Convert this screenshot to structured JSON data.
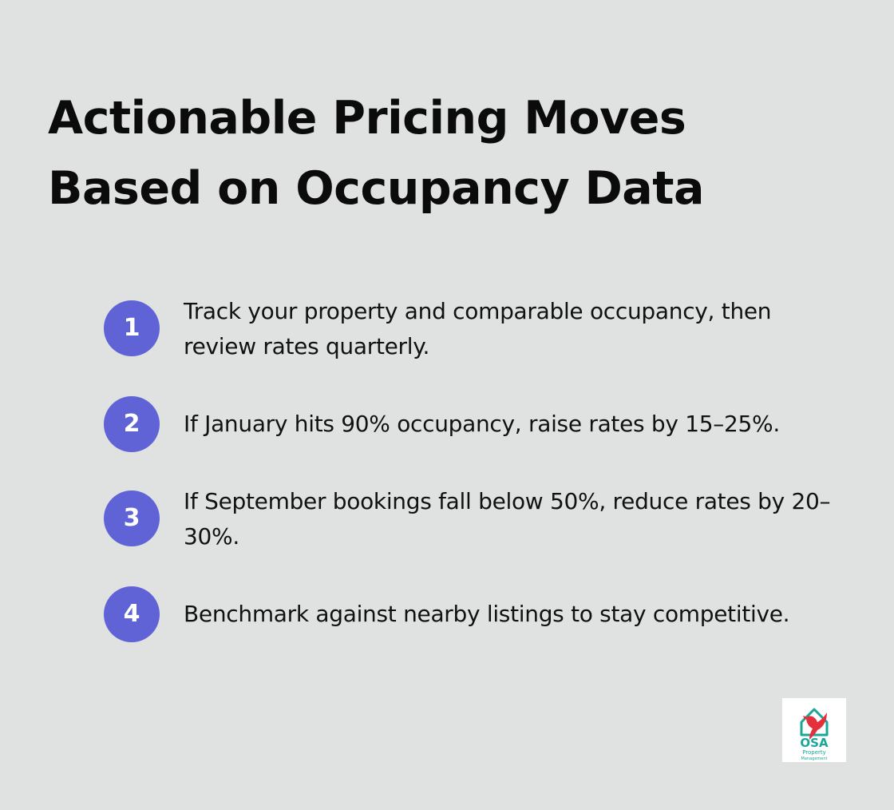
{
  "title": {
    "line1": "Actionable Pricing Moves",
    "line2": "Based on Occupancy Data"
  },
  "steps": [
    {
      "number": "1",
      "text": "Track your property and comparable occupancy, then review rates quarterly."
    },
    {
      "number": "2",
      "text": "If January hits 90% occupancy, raise rates by 15–25%."
    },
    {
      "number": "3",
      "text": "If September bookings fall below 50%, reduce rates by 20–30%."
    },
    {
      "number": "4",
      "text": "Benchmark against nearby listings to stay competitive."
    }
  ],
  "logo": {
    "wordmark": "OSA",
    "subtitle_line1": "Property",
    "subtitle_line2": "Management",
    "icon": "bird-house-logo-icon"
  },
  "colors": {
    "background": "#e0e2e1",
    "badge": "#5f63d6",
    "logo_teal": "#1aa79a",
    "logo_red": "#e3303a"
  }
}
